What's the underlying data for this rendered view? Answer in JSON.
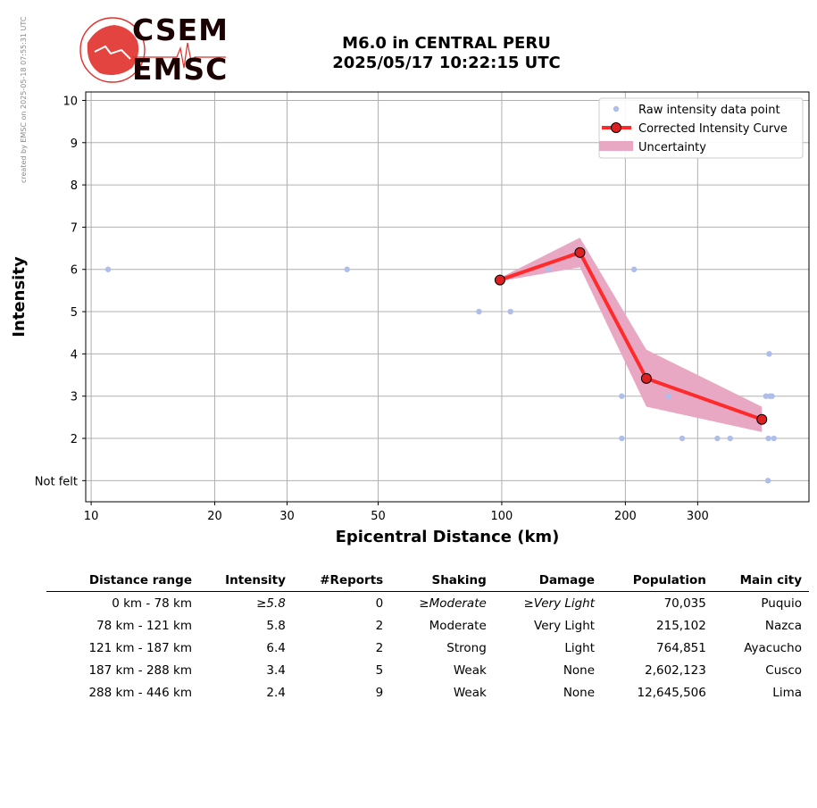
{
  "page": {
    "side_note": "created by EMSC on 2025-05-18 07:55:31 UTC",
    "title_line1": "M6.0 in CENTRAL PERU",
    "title_line2": "2025/05/17 10:22:15 UTC",
    "logo": {
      "text_top": "CSEM",
      "text_bottom": "EMSC",
      "icon": "globe-europe-icon"
    }
  },
  "colors": {
    "raw_points": "#aebde9",
    "curve": "#ff2a2a",
    "marker_face": "#e02020",
    "uncertainty": "#e8a8c4",
    "grid": "#b0b0b0",
    "logo_red": "#e0302a"
  },
  "chart_data": {
    "type": "line",
    "xlabel": "Epicentral Distance (km)",
    "ylabel": "Intensity",
    "xscale": "log",
    "xlim": [
      9.7,
      560
    ],
    "ylim": [
      0.5,
      10.2
    ],
    "xticks": [
      10,
      20,
      30,
      50,
      100,
      200,
      300
    ],
    "xtick_labels": [
      "10",
      "20",
      "30",
      "50",
      "100",
      "200",
      "300"
    ],
    "yticks": [
      1,
      2,
      3,
      4,
      5,
      6,
      7,
      8,
      9,
      10
    ],
    "ytick_labels": [
      "Not felt",
      "2",
      "3",
      "4",
      "5",
      "6",
      "7",
      "8",
      "9",
      "10"
    ],
    "grid": true,
    "legend_position": "top-right",
    "legend": [
      "Raw intensity data point",
      "Corrected Intensity Curve",
      "Uncertainty"
    ],
    "series": [
      {
        "name": "Raw intensity data point",
        "kind": "scatter",
        "points": [
          [
            11,
            6
          ],
          [
            42,
            6
          ],
          [
            88,
            5
          ],
          [
            105,
            5
          ],
          [
            130,
            6
          ],
          [
            196,
            3
          ],
          [
            196,
            2
          ],
          [
            210,
            6
          ],
          [
            255,
            3
          ],
          [
            275,
            2
          ],
          [
            335,
            2
          ],
          [
            360,
            2
          ],
          [
            440,
            3
          ],
          [
            446,
            2
          ],
          [
            448,
            4
          ],
          [
            450,
            3
          ],
          [
            455,
            3
          ],
          [
            460,
            2
          ],
          [
            445,
            1
          ]
        ]
      },
      {
        "name": "Corrected Intensity Curve",
        "kind": "line",
        "points": [
          [
            99,
            5.75
          ],
          [
            155,
            6.4
          ],
          [
            225,
            3.42
          ],
          [
            430,
            2.45
          ]
        ]
      },
      {
        "name": "Uncertainty",
        "kind": "band",
        "x": [
          99,
          155,
          225,
          430
        ],
        "upper": [
          5.8,
          6.75,
          4.1,
          2.75
        ],
        "lower": [
          5.72,
          6.05,
          2.75,
          2.15
        ]
      }
    ]
  },
  "table": {
    "headers": [
      "Distance range",
      "Intensity",
      "#Reports",
      "Shaking",
      "Damage",
      "Population",
      "Main city"
    ],
    "rows": [
      [
        "0 km -   78 km",
        "≥5.8",
        "0",
        "≥Moderate",
        "≥Very Light",
        "70,035",
        "Puquio"
      ],
      [
        "78 km -  121 km",
        "5.8",
        "2",
        "Moderate",
        "Very Light",
        "215,102",
        "Nazca"
      ],
      [
        "121 km -  187 km",
        "6.4",
        "2",
        "Strong",
        "Light",
        "764,851",
        "Ayacucho"
      ],
      [
        "187 km -  288 km",
        "3.4",
        "5",
        "Weak",
        "None",
        "2,602,123",
        "Cusco"
      ],
      [
        "288 km -  446 km",
        "2.4",
        "9",
        "Weak",
        "None",
        "12,645,506",
        "Lima"
      ]
    ]
  }
}
